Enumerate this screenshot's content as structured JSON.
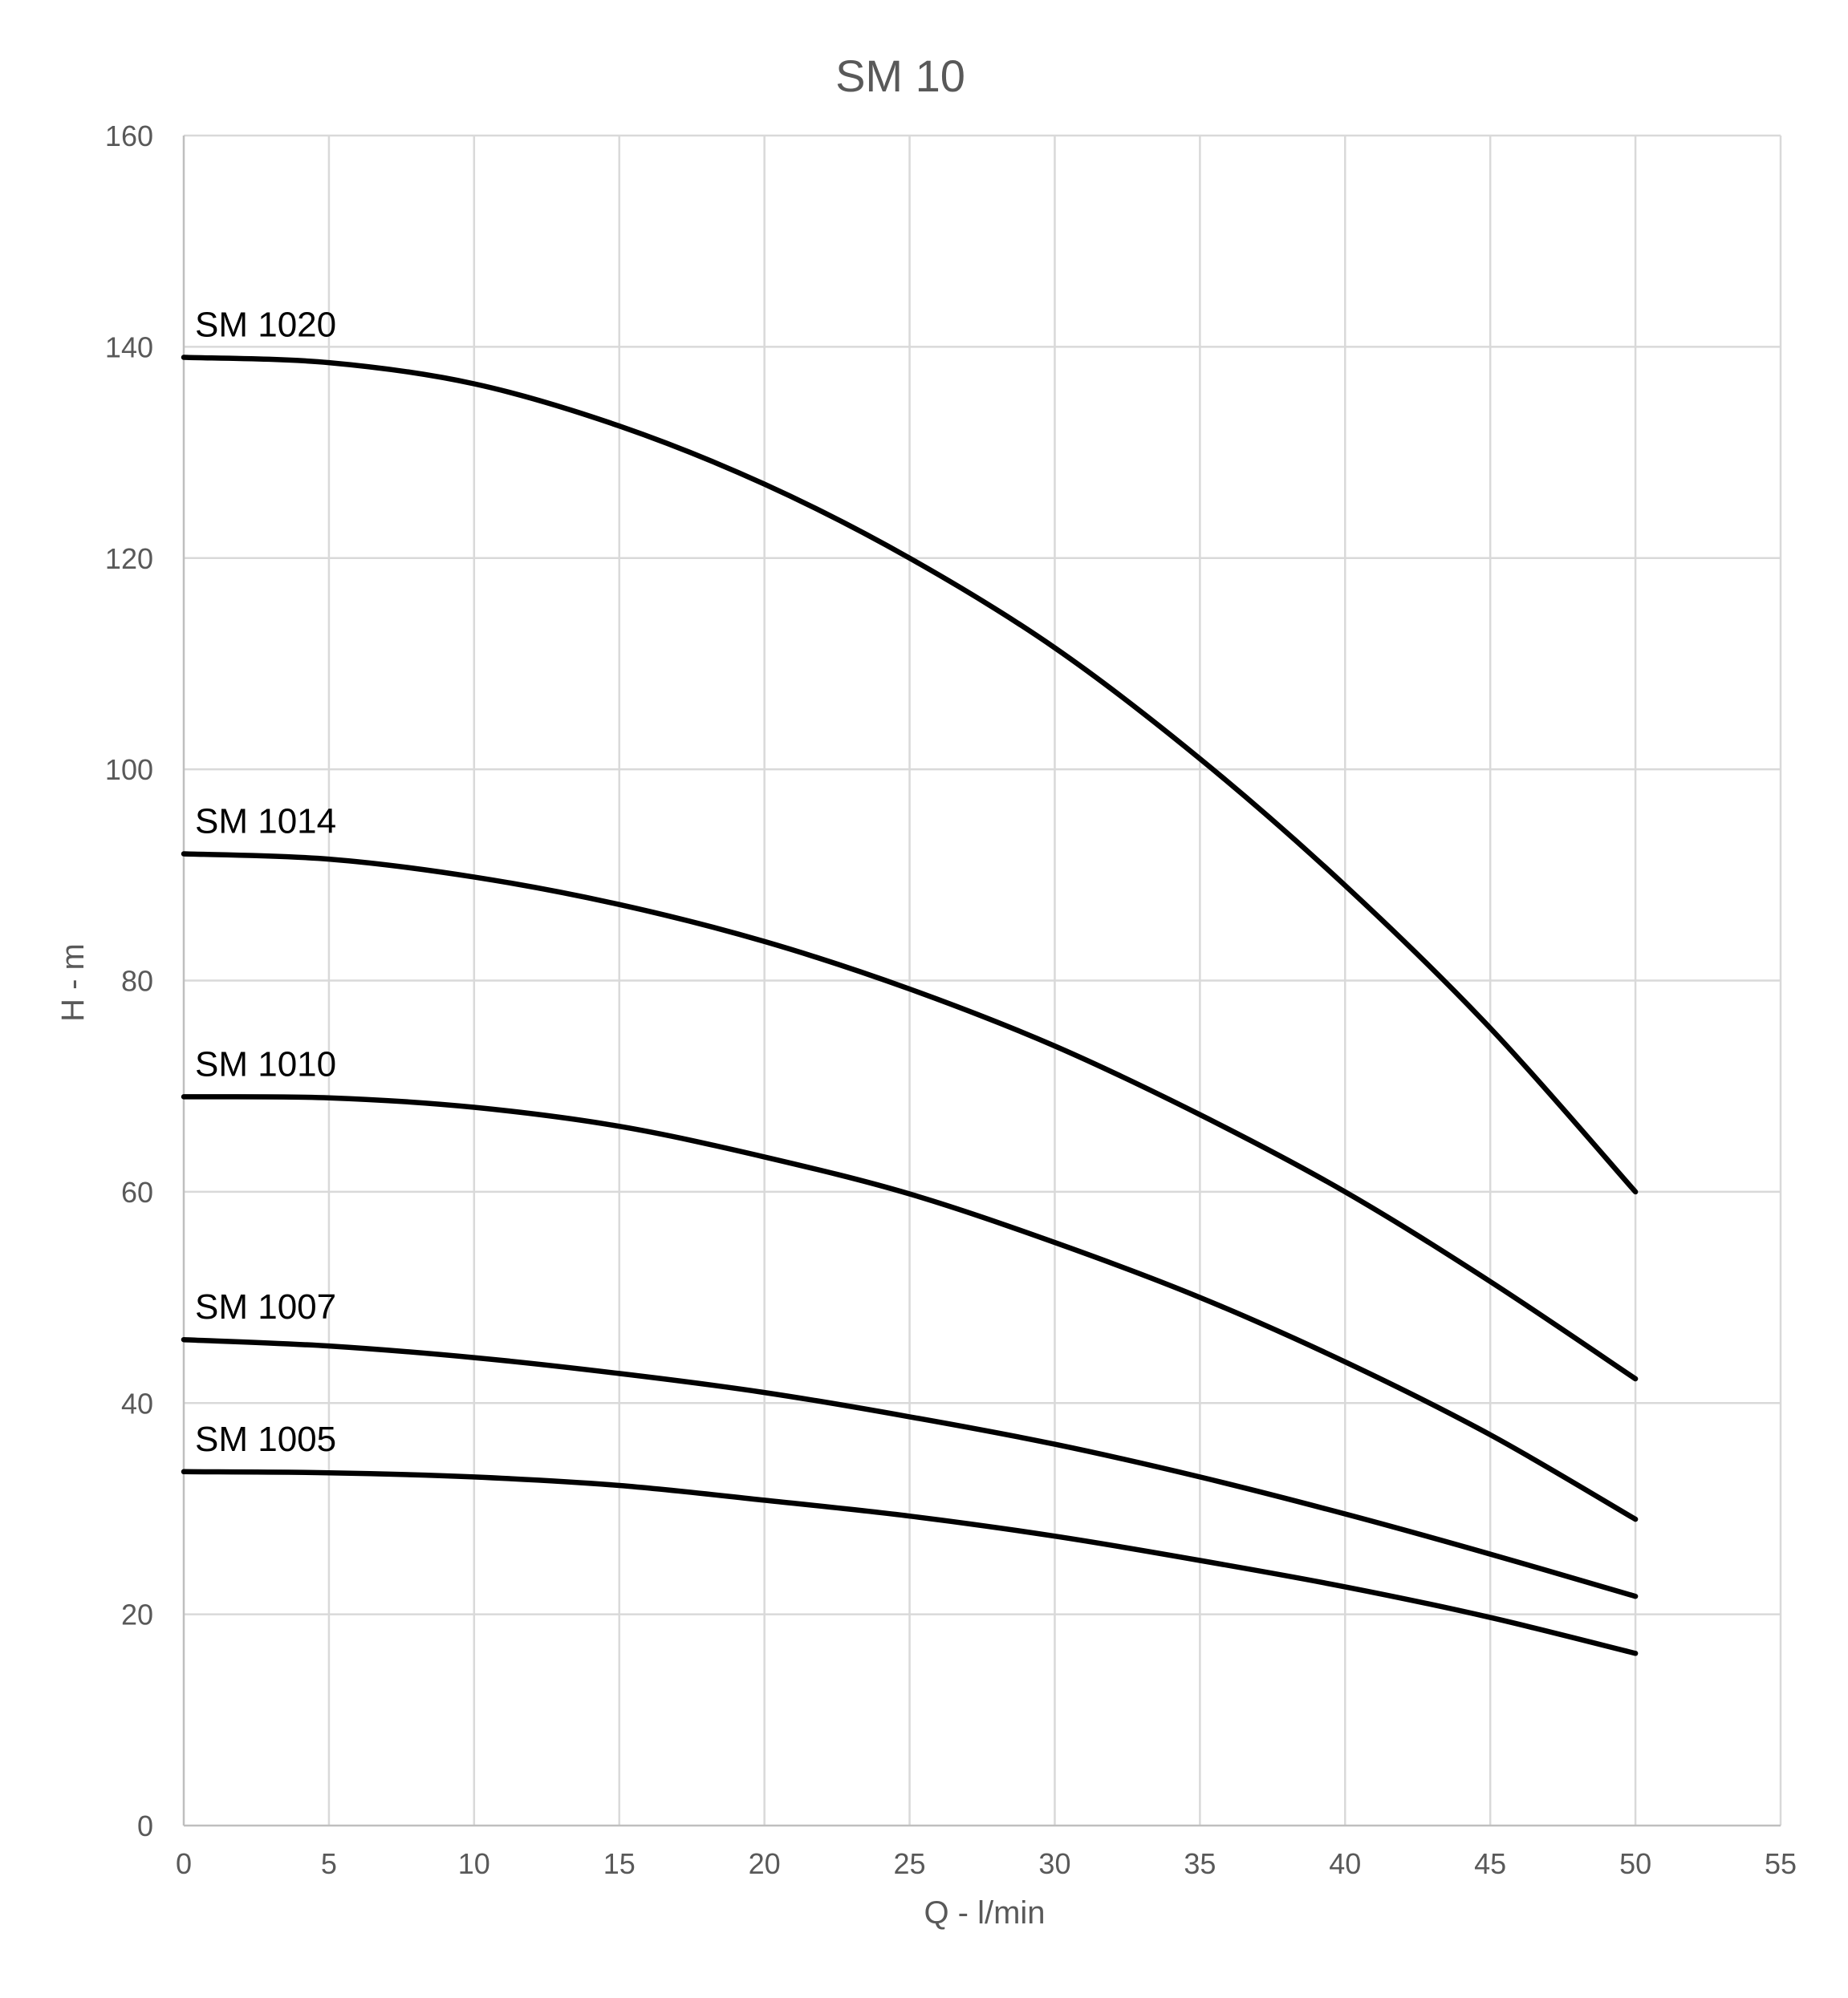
{
  "chart_data": {
    "type": "line",
    "title": "SM 10",
    "xlabel": "Q - l/min",
    "ylabel": "H - m",
    "xlim": [
      0,
      55
    ],
    "ylim": [
      0,
      160
    ],
    "xticks": [
      0,
      5,
      10,
      15,
      20,
      25,
      30,
      35,
      40,
      45,
      50,
      55
    ],
    "yticks": [
      0,
      20,
      40,
      60,
      80,
      100,
      120,
      140,
      160
    ],
    "grid": true,
    "legend": "none (series labels placed above curve starts)",
    "x": [
      0,
      5,
      10,
      15,
      20,
      25,
      30,
      35,
      40,
      45,
      50
    ],
    "series": [
      {
        "name": "SM 1020",
        "values": [
          139,
          138.5,
          136.5,
          132.5,
          127,
          120,
          111.5,
          101,
          89,
          75.5,
          60
        ]
      },
      {
        "name": "SM 1014",
        "values": [
          92,
          91.5,
          89.8,
          87.2,
          83.7,
          79.2,
          73.8,
          67.3,
          60,
          51.5,
          42.3
        ]
      },
      {
        "name": "SM 1010",
        "values": [
          69,
          68.9,
          68,
          66.2,
          63.3,
          59.8,
          55.2,
          50,
          43.9,
          37,
          29
        ]
      },
      {
        "name": "SM 1007",
        "values": [
          46,
          45.4,
          44.3,
          42.8,
          41,
          38.7,
          36.1,
          33,
          29.5,
          25.7,
          21.7
        ]
      },
      {
        "name": "SM 1005",
        "values": [
          33.5,
          33.4,
          33,
          32.2,
          30.8,
          29.3,
          27.4,
          25.1,
          22.6,
          19.7,
          16.3
        ]
      }
    ]
  }
}
